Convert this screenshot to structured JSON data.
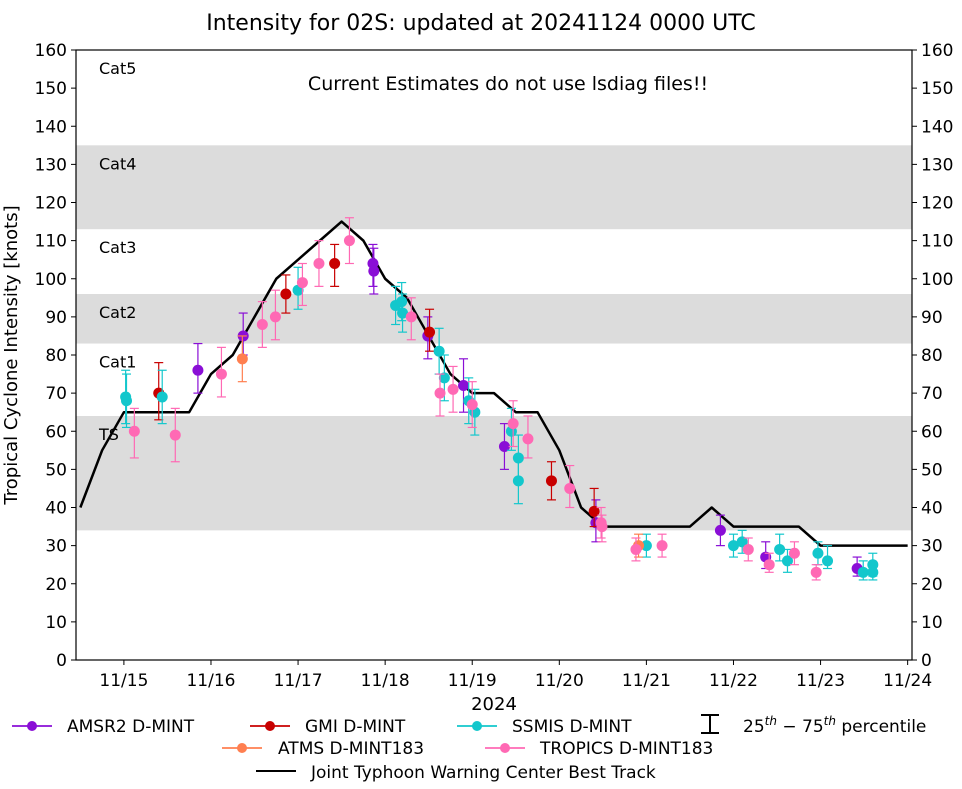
{
  "chart_data": {
    "type": "scatter",
    "title": "Intensity for 02S: updated at 20241124 0000 UTC",
    "ylabel": "Tropical Cyclone Intensity [knots]",
    "xlabel": "2024",
    "annotation": "Current Estimates do not use lsdiag files!!",
    "ylim": [
      0,
      160
    ],
    "xlim": [
      -0.55,
      9.05
    ],
    "y_ticks": [
      0,
      10,
      20,
      30,
      40,
      50,
      60,
      70,
      80,
      90,
      100,
      110,
      120,
      130,
      140,
      150,
      160
    ],
    "x_ticks": [
      {
        "x": 0,
        "label": "11/15"
      },
      {
        "x": 1,
        "label": "11/16"
      },
      {
        "x": 2,
        "label": "11/17"
      },
      {
        "x": 3,
        "label": "11/18"
      },
      {
        "x": 4,
        "label": "11/19"
      },
      {
        "x": 5,
        "label": "11/20"
      },
      {
        "x": 6,
        "label": "11/21"
      },
      {
        "x": 7,
        "label": "11/22"
      },
      {
        "x": 8,
        "label": "11/23"
      },
      {
        "x": 9,
        "label": "11/24"
      }
    ],
    "x_units": "days since 2024-11-15 00 UTC",
    "category_bands": [
      {
        "label": "TS",
        "ymin": 34,
        "ymax": 64,
        "shaded": true
      },
      {
        "label": "Cat1",
        "ymin": 64,
        "ymax": 83,
        "shaded": false
      },
      {
        "label": "Cat2",
        "ymin": 83,
        "ymax": 96,
        "shaded": true
      },
      {
        "label": "Cat3",
        "ymin": 96,
        "ymax": 113,
        "shaded": false
      },
      {
        "label": "Cat4",
        "ymin": 113,
        "ymax": 135,
        "shaded": true
      },
      {
        "label": "Cat5",
        "ymin": 135,
        "ymax": 160,
        "shaded": false
      }
    ],
    "best_track": {
      "name": "Joint Typhoon Warning Center Best Track",
      "color": "#000000",
      "points": [
        [
          -0.5,
          40
        ],
        [
          -0.25,
          55
        ],
        [
          0,
          65
        ],
        [
          0.25,
          65
        ],
        [
          0.5,
          65
        ],
        [
          0.75,
          65
        ],
        [
          1,
          75
        ],
        [
          1.25,
          80
        ],
        [
          1.5,
          90
        ],
        [
          1.75,
          100
        ],
        [
          2,
          105
        ],
        [
          2.25,
          110
        ],
        [
          2.5,
          115
        ],
        [
          2.75,
          110
        ],
        [
          3,
          100
        ],
        [
          3.25,
          95
        ],
        [
          3.5,
          85
        ],
        [
          3.75,
          75
        ],
        [
          4,
          70
        ],
        [
          4.25,
          70
        ],
        [
          4.5,
          65
        ],
        [
          4.75,
          65
        ],
        [
          5,
          55
        ],
        [
          5.25,
          40
        ],
        [
          5.5,
          35
        ],
        [
          5.75,
          35
        ],
        [
          6,
          35
        ],
        [
          6.25,
          35
        ],
        [
          6.5,
          35
        ],
        [
          6.75,
          40
        ],
        [
          7,
          35
        ],
        [
          7.25,
          35
        ],
        [
          7.5,
          35
        ],
        [
          7.75,
          35
        ],
        [
          8,
          30
        ],
        [
          8.25,
          30
        ],
        [
          8.5,
          30
        ],
        [
          8.75,
          30
        ],
        [
          9,
          30
        ]
      ]
    },
    "series": [
      {
        "name": "AMSR2 D-MINT",
        "color": "#8a0ed6",
        "points": [
          {
            "x": 0.85,
            "y": 76,
            "lo": 70,
            "hi": 83
          },
          {
            "x": 1.37,
            "y": 85,
            "lo": 80,
            "hi": 91
          },
          {
            "x": 2.86,
            "y": 104,
            "lo": 98,
            "hi": 109
          },
          {
            "x": 2.87,
            "y": 102,
            "lo": 96,
            "hi": 108
          },
          {
            "x": 3.49,
            "y": 85,
            "lo": 79,
            "hi": 90
          },
          {
            "x": 3.9,
            "y": 72,
            "lo": 65,
            "hi": 79
          },
          {
            "x": 4.37,
            "y": 56,
            "lo": 50,
            "hi": 62
          },
          {
            "x": 5.42,
            "y": 36,
            "lo": 31,
            "hi": 42
          },
          {
            "x": 6.85,
            "y": 34,
            "lo": 30,
            "hi": 38
          },
          {
            "x": 7.37,
            "y": 27,
            "lo": 24,
            "hi": 31
          },
          {
            "x": 8.42,
            "y": 24,
            "lo": 22,
            "hi": 27
          }
        ]
      },
      {
        "name": "GMI D-MINT",
        "color": "#c80000",
        "points": [
          {
            "x": 0.4,
            "y": 70,
            "lo": 63,
            "hi": 78
          },
          {
            "x": 1.86,
            "y": 96,
            "lo": 91,
            "hi": 101
          },
          {
            "x": 2.42,
            "y": 104,
            "lo": 98,
            "hi": 109
          },
          {
            "x": 3.51,
            "y": 86,
            "lo": 81,
            "hi": 92
          },
          {
            "x": 4.91,
            "y": 47,
            "lo": 42,
            "hi": 52
          },
          {
            "x": 5.4,
            "y": 39,
            "lo": 35,
            "hi": 45
          }
        ]
      },
      {
        "name": "SSMIS D-MINT",
        "color": "#13c7cc",
        "points": [
          {
            "x": 0.02,
            "y": 69,
            "lo": 62,
            "hi": 76
          },
          {
            "x": 0.03,
            "y": 68,
            "lo": 61,
            "hi": 75
          },
          {
            "x": 0.44,
            "y": 69,
            "lo": 62,
            "hi": 76
          },
          {
            "x": 2.0,
            "y": 97,
            "lo": 92,
            "hi": 103
          },
          {
            "x": 3.12,
            "y": 93,
            "lo": 88,
            "hi": 98
          },
          {
            "x": 3.19,
            "y": 94,
            "lo": 89,
            "hi": 99
          },
          {
            "x": 3.2,
            "y": 91,
            "lo": 86,
            "hi": 96
          },
          {
            "x": 3.62,
            "y": 81,
            "lo": 75,
            "hi": 87
          },
          {
            "x": 3.68,
            "y": 74,
            "lo": 68,
            "hi": 80
          },
          {
            "x": 3.96,
            "y": 68,
            "lo": 62,
            "hi": 74
          },
          {
            "x": 4.03,
            "y": 65,
            "lo": 59,
            "hi": 71
          },
          {
            "x": 4.45,
            "y": 60,
            "lo": 55,
            "hi": 66
          },
          {
            "x": 4.53,
            "y": 53,
            "lo": 47,
            "hi": 59
          },
          {
            "x": 4.53,
            "y": 47,
            "lo": 41,
            "hi": 53
          },
          {
            "x": 6.0,
            "y": 30,
            "lo": 27,
            "hi": 33
          },
          {
            "x": 7.0,
            "y": 30,
            "lo": 27,
            "hi": 33
          },
          {
            "x": 7.1,
            "y": 31,
            "lo": 28,
            "hi": 34
          },
          {
            "x": 7.53,
            "y": 29,
            "lo": 26,
            "hi": 33
          },
          {
            "x": 7.62,
            "y": 26,
            "lo": 23,
            "hi": 29
          },
          {
            "x": 7.97,
            "y": 28,
            "lo": 25,
            "hi": 31
          },
          {
            "x": 8.08,
            "y": 26,
            "lo": 24,
            "hi": 30
          },
          {
            "x": 8.49,
            "y": 23,
            "lo": 21,
            "hi": 26
          },
          {
            "x": 8.6,
            "y": 25,
            "lo": 22,
            "hi": 28
          },
          {
            "x": 8.6,
            "y": 23,
            "lo": 21,
            "hi": 25
          }
        ]
      },
      {
        "name": "ATMS D-MINT183",
        "color": "#ff7f50",
        "points": [
          {
            "x": 1.36,
            "y": 79,
            "lo": 73,
            "hi": 85
          },
          {
            "x": 5.91,
            "y": 30,
            "lo": 27,
            "hi": 33
          }
        ]
      },
      {
        "name": "TROPICS D-MINT183",
        "color": "#ff69b4",
        "points": [
          {
            "x": 0.12,
            "y": 60,
            "lo": 53,
            "hi": 66
          },
          {
            "x": 0.59,
            "y": 59,
            "lo": 52,
            "hi": 66
          },
          {
            "x": 1.12,
            "y": 75,
            "lo": 69,
            "hi": 82
          },
          {
            "x": 1.59,
            "y": 88,
            "lo": 82,
            "hi": 94
          },
          {
            "x": 1.74,
            "y": 90,
            "lo": 84,
            "hi": 97
          },
          {
            "x": 2.05,
            "y": 99,
            "lo": 93,
            "hi": 104
          },
          {
            "x": 2.24,
            "y": 104,
            "lo": 98,
            "hi": 110
          },
          {
            "x": 2.59,
            "y": 110,
            "lo": 104,
            "hi": 116
          },
          {
            "x": 3.3,
            "y": 90,
            "lo": 84,
            "hi": 95
          },
          {
            "x": 3.63,
            "y": 70,
            "lo": 64,
            "hi": 75
          },
          {
            "x": 3.78,
            "y": 71,
            "lo": 65,
            "hi": 77
          },
          {
            "x": 4.0,
            "y": 67,
            "lo": 61,
            "hi": 73
          },
          {
            "x": 4.47,
            "y": 62,
            "lo": 56,
            "hi": 68
          },
          {
            "x": 4.64,
            "y": 58,
            "lo": 53,
            "hi": 64
          },
          {
            "x": 5.12,
            "y": 45,
            "lo": 40,
            "hi": 51
          },
          {
            "x": 5.48,
            "y": 36,
            "lo": 32,
            "hi": 40
          },
          {
            "x": 5.49,
            "y": 35,
            "lo": 31,
            "hi": 38
          },
          {
            "x": 5.88,
            "y": 29,
            "lo": 26,
            "hi": 32
          },
          {
            "x": 6.18,
            "y": 30,
            "lo": 27,
            "hi": 33
          },
          {
            "x": 7.17,
            "y": 29,
            "lo": 26,
            "hi": 32
          },
          {
            "x": 7.41,
            "y": 25,
            "lo": 23,
            "hi": 28
          },
          {
            "x": 7.7,
            "y": 28,
            "lo": 25,
            "hi": 31
          },
          {
            "x": 7.95,
            "y": 23,
            "lo": 21,
            "hi": 25
          }
        ]
      }
    ],
    "legend": {
      "placement": "bottom",
      "percentile_label": "25th − 75th percentile",
      "percentile_base": "25",
      "percentile_sup1": "th",
      "percentile_mid": " − 75",
      "percentile_sup2": "th",
      "percentile_tail": " percentile"
    }
  }
}
